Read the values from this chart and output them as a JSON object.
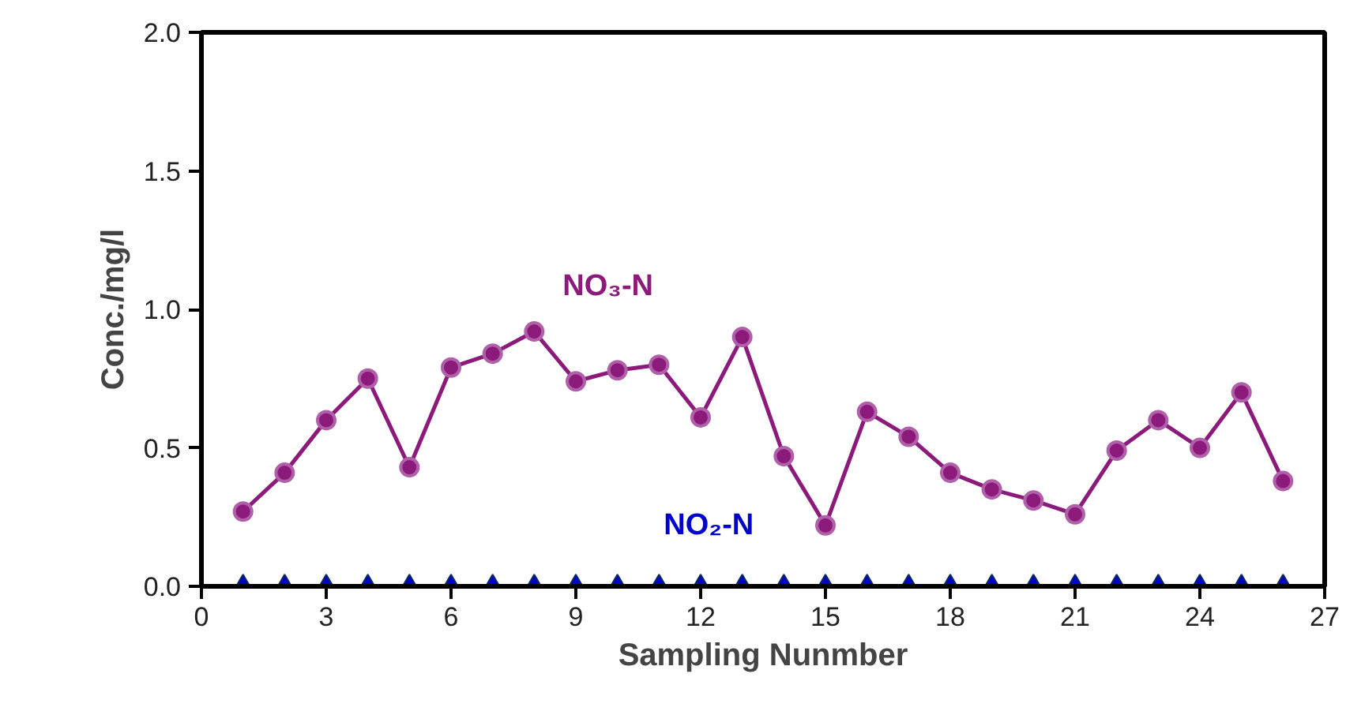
{
  "chart_data": {
    "type": "line",
    "xlabel": "Sampling Nunmber",
    "ylabel": "Conc./mg/l",
    "x": [
      1,
      2,
      3,
      4,
      5,
      6,
      7,
      8,
      9,
      10,
      11,
      12,
      13,
      14,
      15,
      16,
      17,
      18,
      19,
      20,
      21,
      22,
      23,
      24,
      25,
      26
    ],
    "series": [
      {
        "name": "NO₃-N",
        "color": "#8b1a7b",
        "marker": "circle",
        "values": [
          0.27,
          0.41,
          0.6,
          0.75,
          0.43,
          0.79,
          0.84,
          0.92,
          0.74,
          0.78,
          0.8,
          0.61,
          0.9,
          0.47,
          0.22,
          0.63,
          0.54,
          0.41,
          0.35,
          0.31,
          0.26,
          0.49,
          0.6,
          0.5,
          0.7,
          0.38
        ]
      },
      {
        "name": "NO₂-N",
        "type": "scatter",
        "color": "#0000cc",
        "marker": "triangle",
        "values": [
          0,
          0,
          0,
          0,
          0,
          0,
          0,
          0,
          0,
          0,
          0,
          0,
          0,
          0,
          0,
          0,
          0,
          0,
          0,
          0,
          0,
          0,
          0,
          0,
          0,
          0
        ]
      }
    ],
    "xlim": [
      0,
      27
    ],
    "xticks": [
      0,
      3,
      6,
      9,
      12,
      15,
      18,
      21,
      24,
      27
    ],
    "ylim": [
      0,
      2
    ],
    "yticks": [
      {
        "value": 0,
        "label": "0.0"
      },
      {
        "value": 0.5,
        "label": "0.5"
      },
      {
        "value": 1,
        "label": "1.0"
      },
      {
        "value": 1.5,
        "label": "1.5"
      },
      {
        "value": 2,
        "label": "2.0"
      }
    ],
    "grid": false
  }
}
